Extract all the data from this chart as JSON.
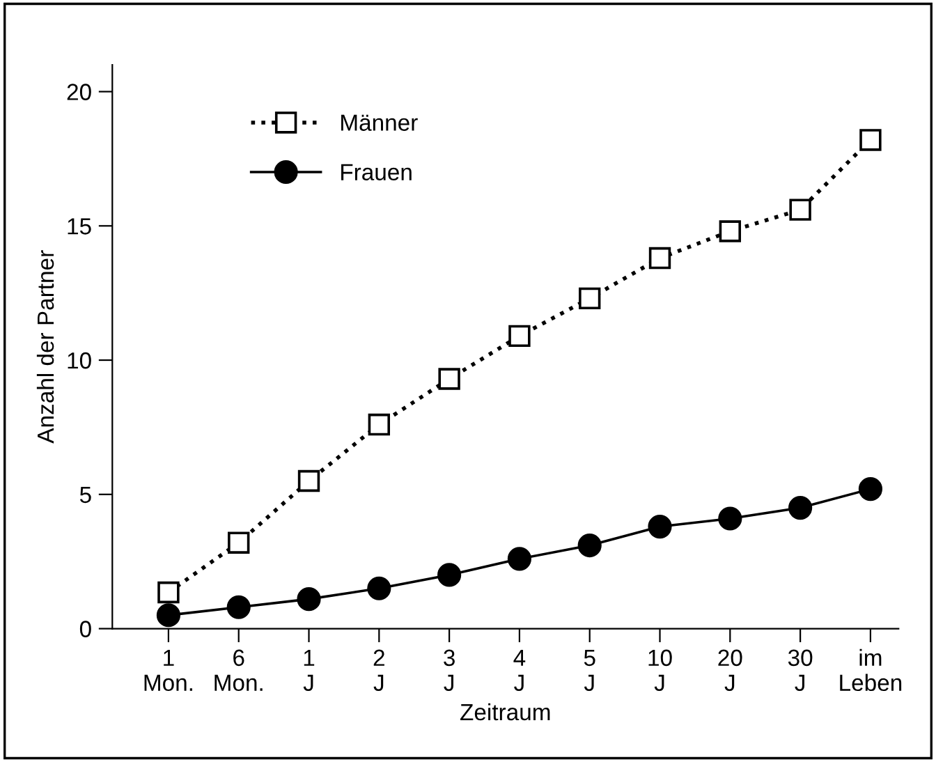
{
  "chart_data": {
    "type": "line",
    "xlabel": "Zeitraum",
    "ylabel": "Anzahl der Partner",
    "categories": [
      "1\nMon.",
      "6\nMon.",
      "1\nJ",
      "2\nJ",
      "3\nJ",
      "4\nJ",
      "5\nJ",
      "10\nJ",
      "20\nJ",
      "30\nJ",
      "im\nLeben"
    ],
    "series": [
      {
        "name": "Männer",
        "color": "#000000",
        "marker": "square",
        "line_style": "dotted",
        "values": [
          1.35,
          3.2,
          5.5,
          7.6,
          9.3,
          10.9,
          12.3,
          13.8,
          14.8,
          15.6,
          18.2
        ]
      },
      {
        "name": "Frauen",
        "color": "#000000",
        "marker": "circle",
        "line_style": "solid",
        "values": [
          0.5,
          0.8,
          1.1,
          1.5,
          2.0,
          2.6,
          3.1,
          3.8,
          4.1,
          4.5,
          5.2
        ]
      }
    ],
    "ylim": [
      0,
      21
    ],
    "yticks": [
      0,
      5,
      10,
      15,
      20
    ],
    "grid": false,
    "legend": "top left"
  }
}
